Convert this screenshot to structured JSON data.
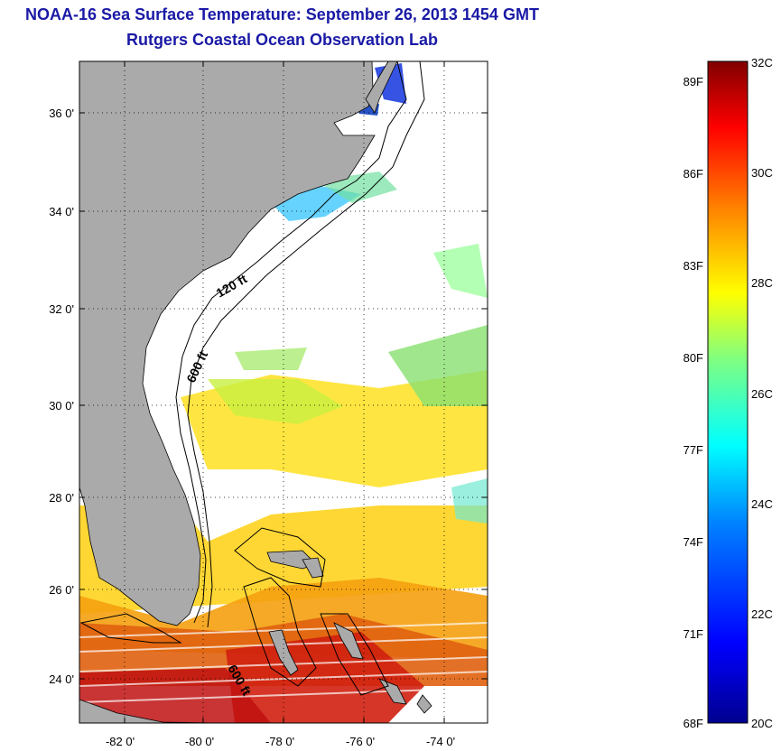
{
  "title_line1": "NOAA-16 Sea Surface Temperature:  September 26, 2013 1454 GMT",
  "title_line2": "Rutgers Coastal Ocean Observation Lab",
  "map": {
    "lat_ticks": [
      "36 0'",
      "34 0'",
      "32 0'",
      "30 0'",
      "28 0'",
      "26 0'",
      "24 0'"
    ],
    "lon_ticks": [
      "-82 0'",
      "-80 0'",
      "-78 0'",
      "-76 0'",
      "-74 0'"
    ],
    "contour_labels": [
      "120 ft",
      "600 ft",
      "600 ft"
    ],
    "land_color": "#aaaaaa"
  },
  "colorbar": {
    "fahrenheit_labels": [
      "89F",
      "86F",
      "83F",
      "80F",
      "77F",
      "74F",
      "71F",
      "68F"
    ],
    "celsius_labels": [
      "32C",
      "30C",
      "28C",
      "26C",
      "24C",
      "22C",
      "20C"
    ],
    "min_c": 20,
    "max_c": 32,
    "colors": [
      "#00008f",
      "#0000ff",
      "#0080ff",
      "#00ffff",
      "#80ff80",
      "#ffff00",
      "#ff8000",
      "#ff0000",
      "#800000"
    ]
  }
}
